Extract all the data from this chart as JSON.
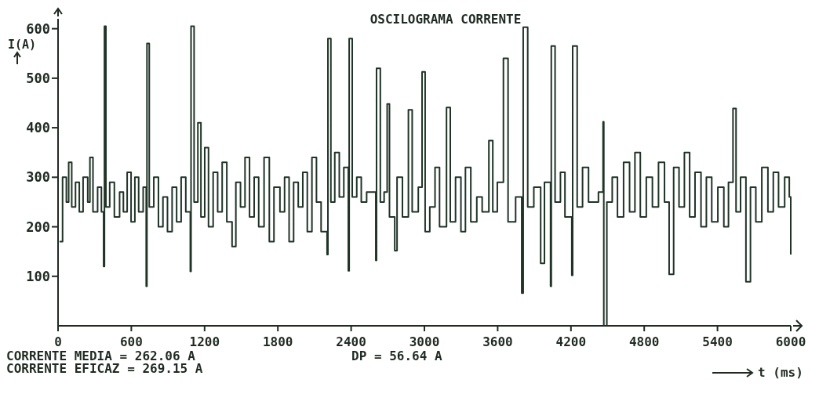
{
  "chart_data": {
    "type": "step",
    "title": "OSCILOGRAMA CORRENTE",
    "xlabel": "t (ms)",
    "ylabel": "I(A)",
    "annotations": [
      "CORRENTE MEDIA = 262.06 A",
      "CORRENTE EFICAZ = 269.15 A",
      "DP = 56.64 A"
    ],
    "xlim": [
      0,
      6000
    ],
    "xticks": [
      0,
      600,
      1200,
      1800,
      2400,
      3000,
      3600,
      4200,
      4800,
      5400,
      6000
    ],
    "ylim": [
      0,
      620
    ],
    "yticks": [
      100,
      200,
      300,
      400,
      500,
      600
    ],
    "grid": false,
    "marker": "none",
    "line_style": "solid",
    "series": [
      {
        "color": "#1f3326",
        "x": [
          12,
          37,
          68,
          87,
          112,
          143,
          174,
          205,
          243,
          261,
          286,
          324,
          355,
          373,
          380,
          392,
          423,
          461,
          504,
          535,
          566,
          598,
          629,
          660,
          697,
          722,
          728,
          747,
          784,
          822,
          859,
          896,
          934,
          971,
          1008,
          1046,
          1083,
          1089,
          1114,
          1145,
          1170,
          1201,
          1232,
          1270,
          1307,
          1344,
          1382,
          1425,
          1456,
          1494,
          1531,
          1568,
          1606,
          1643,
          1687,
          1730,
          1768,
          1817,
          1855,
          1892,
          1929,
          1967,
          2004,
          2041,
          2079,
          2116,
          2154,
          2203,
          2210,
          2234,
          2266,
          2303,
          2340,
          2377,
          2384,
          2409,
          2446,
          2483,
          2527,
          2602,
          2608,
          2639,
          2670,
          2695,
          2714,
          2757,
          2776,
          2820,
          2869,
          2900,
          2950,
          2981,
          3006,
          3044,
          3087,
          3124,
          3181,
          3212,
          3255,
          3299,
          3336,
          3380,
          3429,
          3473,
          3528,
          3560,
          3597,
          3647,
          3685,
          3747,
          3797,
          3809,
          3846,
          3896,
          3952,
          3983,
          4033,
          4039,
          4070,
          4114,
          4151,
          4207,
          4214,
          4251,
          4295,
          4344,
          4425,
          4463,
          4469,
          4494,
          4538,
          4581,
          4631,
          4680,
          4724,
          4768,
          4817,
          4867,
          4917,
          4966,
          5004,
          5041,
          5085,
          5129,
          5172,
          5216,
          5265,
          5309,
          5353,
          5403,
          5452,
          5490,
          5527,
          5552,
          5589,
          5633,
          5670,
          5714,
          5763,
          5813,
          5857,
          5900,
          5950,
          5988,
          6000
        ],
        "values": [
          170,
          300,
          250,
          330,
          240,
          290,
          230,
          300,
          250,
          340,
          230,
          280,
          230,
          120,
          605,
          240,
          290,
          220,
          270,
          230,
          310,
          210,
          300,
          230,
          280,
          80,
          570,
          240,
          300,
          200,
          260,
          190,
          280,
          210,
          300,
          230,
          110,
          605,
          250,
          410,
          220,
          360,
          200,
          310,
          230,
          330,
          210,
          160,
          290,
          240,
          340,
          220,
          300,
          200,
          340,
          170,
          280,
          230,
          300,
          170,
          290,
          240,
          310,
          190,
          340,
          250,
          190,
          144,
          580,
          250,
          350,
          260,
          320,
          111,
          580,
          260,
          300,
          250,
          270,
          132,
          520,
          250,
          270,
          448,
          220,
          152,
          300,
          220,
          436,
          230,
          280,
          513,
          190,
          240,
          320,
          200,
          441,
          210,
          300,
          190,
          320,
          210,
          260,
          230,
          374,
          230,
          290,
          540,
          210,
          260,
          66,
          603,
          240,
          280,
          126,
          290,
          80,
          565,
          250,
          310,
          220,
          102,
          565,
          240,
          320,
          250,
          270,
          412,
          0,
          250,
          300,
          220,
          330,
          230,
          350,
          220,
          300,
          240,
          330,
          250,
          104,
          320,
          240,
          350,
          220,
          310,
          200,
          300,
          210,
          280,
          200,
          290,
          439,
          230,
          300,
          89,
          280,
          210,
          320,
          230,
          310,
          240,
          300,
          260,
          144
        ]
      }
    ]
  }
}
